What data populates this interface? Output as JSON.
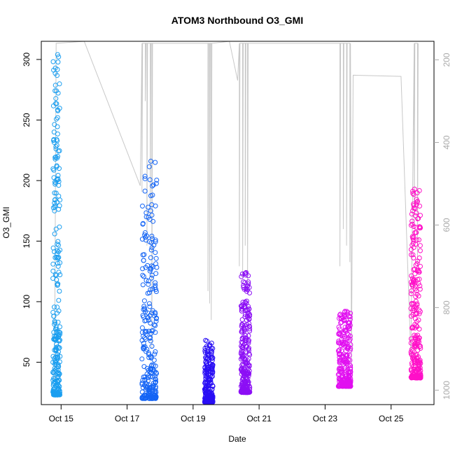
{
  "chart_data": {
    "type": "scatter",
    "title": "ATOM3 Northbound O3_GMI",
    "xlabel": "Date",
    "ylabel": "O3_GMI",
    "x_tick_labels": [
      "Oct 15",
      "Oct 17",
      "Oct 19",
      "Oct 21",
      "Oct 23",
      "Oct 25"
    ],
    "x_tick_days": [
      15,
      17,
      19,
      21,
      23,
      25
    ],
    "xlim_days": [
      14.4,
      26.3
    ],
    "ylim": [
      15,
      315
    ],
    "y_ticks": [
      50,
      100,
      150,
      200,
      250,
      300
    ],
    "right_axis": {
      "ylim": [
        1035,
        155
      ],
      "ticks": [
        200,
        400,
        600,
        800,
        1000
      ],
      "color": "#aaaaaa"
    },
    "grid": false,
    "legend": "none",
    "series": [
      {
        "color": "#1a9ef0",
        "x_range_days": [
          14.75,
          14.97
        ],
        "y_min": 23,
        "y_max": 304
      },
      {
        "color": "#1464f5",
        "x_range_days": [
          17.45,
          17.9
        ],
        "y_min": 20,
        "y_max": 216
      },
      {
        "color": "#2a0ff5",
        "x_range_days": [
          19.35,
          19.6
        ],
        "y_min": 17,
        "y_max": 68
      },
      {
        "color": "#8c0ff5",
        "x_range_days": [
          20.45,
          20.72
        ],
        "y_min": 25,
        "y_max": 124
      },
      {
        "color": "#e10ff0",
        "x_range_days": [
          23.4,
          23.78
        ],
        "y_min": 30,
        "y_max": 92
      },
      {
        "color": "#ff10c8",
        "x_range_days": [
          25.6,
          25.9
        ],
        "y_min": 37,
        "y_max": 193
      }
    ],
    "pressure_trace_color": "#c8c8c8"
  }
}
